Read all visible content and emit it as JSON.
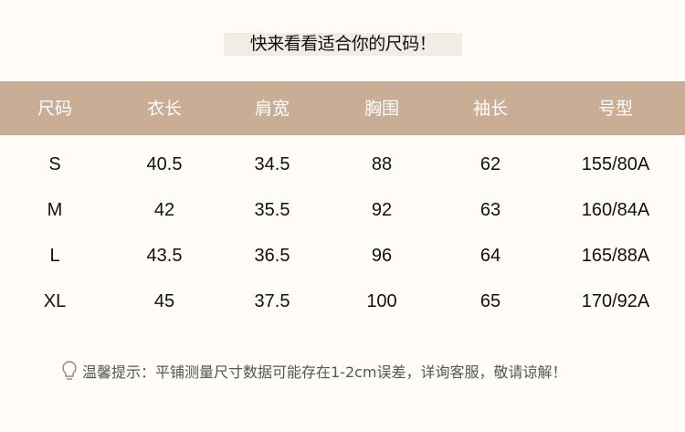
{
  "title": "快来看看适合你的尺码！",
  "table": {
    "headers": [
      "尺码",
      "衣长",
      "肩宽",
      "胸围",
      "袖长",
      "号型"
    ],
    "rows": [
      [
        "S",
        "40.5",
        "34.5",
        "88",
        "62",
        "155/80A"
      ],
      [
        "M",
        "42",
        "35.5",
        "92",
        "63",
        "160/84A"
      ],
      [
        "L",
        "43.5",
        "36.5",
        "96",
        "64",
        "165/88A"
      ],
      [
        "XL",
        "45",
        "37.5",
        "100",
        "65",
        "170/92A"
      ]
    ]
  },
  "tip": {
    "icon": "lightbulb-icon",
    "text": "温馨提示：平铺测量尺寸数据可能存在1-2cm误差，详询客服，敬请谅解！"
  },
  "colors": {
    "header_bg": "#c9ae95",
    "background": "#fffbf7"
  }
}
